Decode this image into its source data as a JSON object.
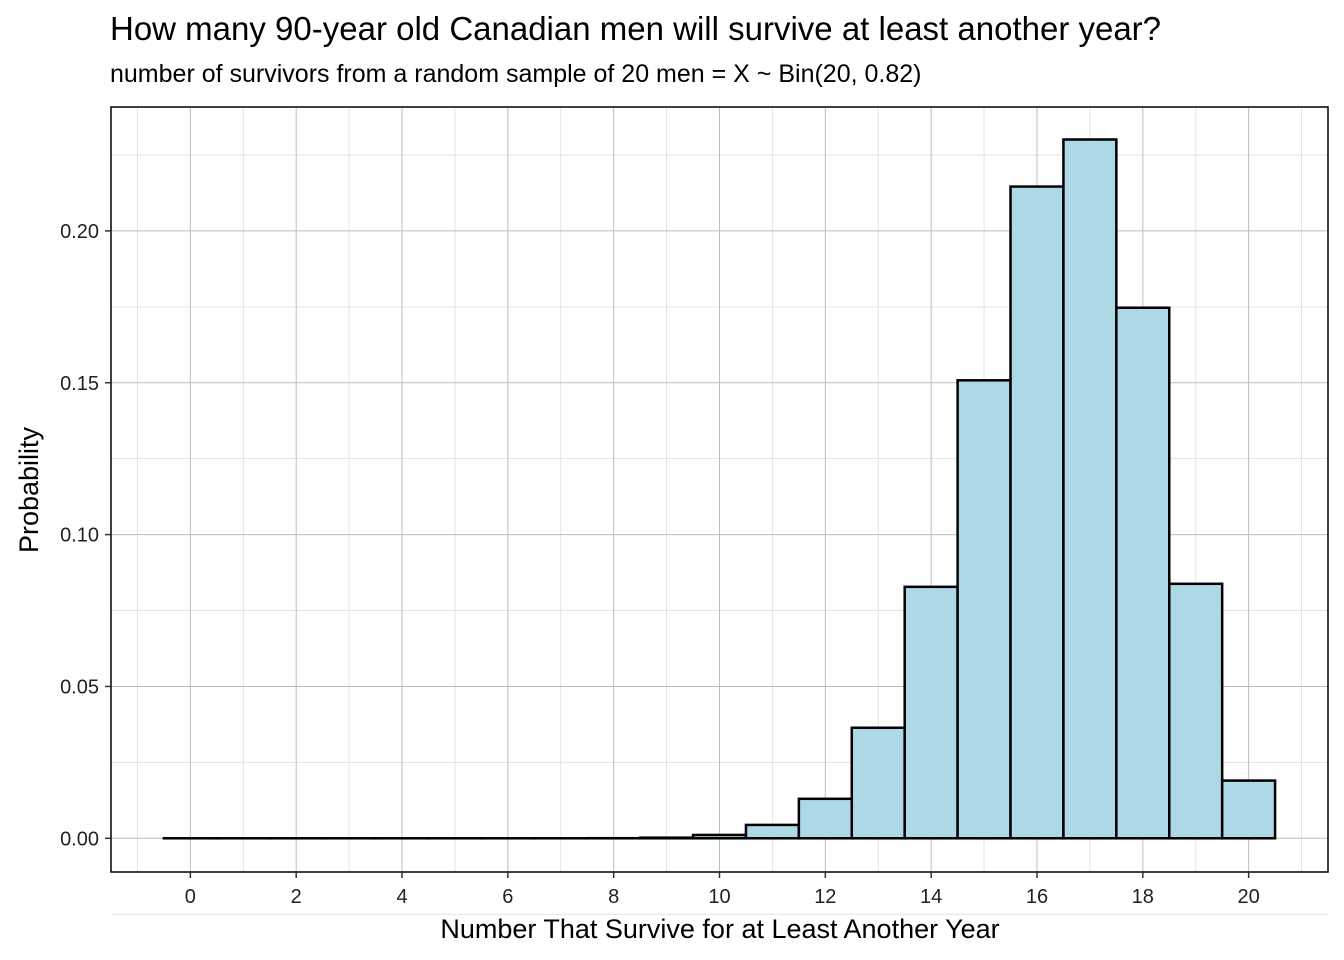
{
  "chart_data": {
    "type": "bar",
    "title": "How many 90-year old Canadian men will survive at least another year?",
    "subtitle": "number of survivors from a random sample of 20 men = X ~ Bin(20, 0.82)",
    "xlabel": "Number That Survive for at Least Another Year",
    "ylabel": "Probability",
    "x": [
      0,
      1,
      2,
      3,
      4,
      5,
      6,
      7,
      8,
      9,
      10,
      11,
      12,
      13,
      14,
      15,
      16,
      17,
      18,
      19,
      20
    ],
    "values": [
      0.0,
      0.0,
      0.0,
      0.0,
      0.0,
      0.0,
      0.0,
      0.0,
      3e-05,
      0.0002,
      0.0011,
      0.0044,
      0.013,
      0.0364,
      0.0828,
      0.1508,
      0.2146,
      0.2301,
      0.1747,
      0.0838,
      0.019
    ],
    "xlim": [
      -1.5,
      21.5
    ],
    "ylim": [
      -0.0111,
      0.2408
    ],
    "x_ticks": [
      "0",
      "2",
      "4",
      "6",
      "8",
      "10",
      "12",
      "14",
      "16",
      "18",
      "20"
    ],
    "x_tick_values": [
      0,
      2,
      4,
      6,
      8,
      10,
      12,
      14,
      16,
      18,
      20
    ],
    "y_ticks": [
      "0.00",
      "0.05",
      "0.10",
      "0.15",
      "0.20"
    ],
    "y_tick_values": [
      0.0,
      0.05,
      0.1,
      0.15,
      0.2
    ],
    "grid": true,
    "colors": {
      "bar_fill": "#add8e6",
      "bar_stroke": "#000000",
      "grid_major": "#bdbdbd",
      "grid_minor": "#e3e3e3"
    }
  }
}
